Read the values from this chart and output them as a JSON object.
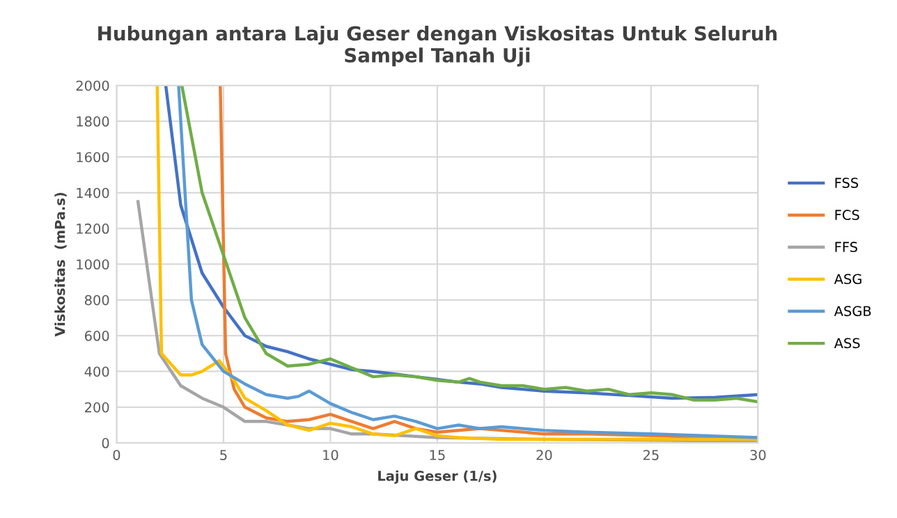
{
  "chart_data": {
    "type": "line",
    "title": "Hubungan antara Laju Geser dengan Viskositas Untuk Seluruh\nSampel Tanah Uji",
    "xlabel": "Laju Geser (1/s)",
    "ylabel": "Viskositas  (mPa.s)",
    "xlim": [
      0,
      30
    ],
    "ylim": [
      0,
      2000
    ],
    "xticks": [
      0,
      5,
      10,
      15,
      20,
      25,
      30
    ],
    "yticks": [
      0,
      200,
      400,
      600,
      800,
      1000,
      1200,
      1400,
      1600,
      1800,
      2000
    ],
    "grid": true,
    "legend": "right",
    "marker": "none",
    "line_style": "solid",
    "series": [
      {
        "name": "FSS",
        "color": "#4472c4",
        "x": [
          2.3,
          3,
          4,
          5,
          6,
          7,
          8,
          9,
          10,
          11,
          12,
          13,
          14,
          15,
          16,
          17,
          18,
          19,
          20,
          22,
          24,
          26,
          28,
          30
        ],
        "values": [
          2000,
          1330,
          950,
          760,
          600,
          540,
          510,
          470,
          440,
          410,
          400,
          385,
          370,
          355,
          340,
          330,
          310,
          300,
          290,
          280,
          265,
          250,
          255,
          270
        ]
      },
      {
        "name": "FCS",
        "color": "#ed7d31",
        "x": [
          4.85,
          5.1,
          5.5,
          6,
          7,
          8,
          9,
          10,
          11,
          12,
          13,
          14,
          15,
          17,
          18,
          20,
          22,
          25,
          28,
          30
        ],
        "values": [
          2000,
          500,
          300,
          200,
          140,
          120,
          130,
          160,
          120,
          80,
          120,
          80,
          60,
          80,
          70,
          50,
          50,
          40,
          30,
          30
        ]
      },
      {
        "name": "FFS",
        "color": "#a5a5a5",
        "x": [
          1,
          2,
          3,
          4,
          5,
          6,
          7,
          8,
          9,
          10,
          11,
          12,
          15,
          20,
          25,
          30
        ],
        "values": [
          1350,
          500,
          320,
          250,
          200,
          120,
          120,
          100,
          80,
          80,
          50,
          50,
          30,
          20,
          15,
          10
        ]
      },
      {
        "name": "ASG",
        "color": "#ffc000",
        "x": [
          1.9,
          2.1,
          3,
          3.5,
          4,
          4.8,
          5.5,
          6,
          7,
          8,
          9,
          10,
          11,
          12,
          13,
          14,
          15,
          16,
          18,
          20,
          25,
          30
        ],
        "values": [
          2000,
          500,
          380,
          380,
          400,
          460,
          350,
          250,
          180,
          100,
          70,
          110,
          90,
          50,
          40,
          80,
          40,
          30,
          20,
          20,
          20,
          20
        ]
      },
      {
        "name": "ASGB",
        "color": "#5b9bd5",
        "x": [
          2.9,
          3.5,
          4,
          5,
          6,
          7,
          8,
          8.5,
          9,
          10,
          11,
          12,
          13,
          14,
          15,
          16,
          17,
          18,
          20,
          22,
          25,
          30
        ],
        "values": [
          2000,
          800,
          550,
          400,
          330,
          270,
          250,
          260,
          290,
          220,
          170,
          130,
          150,
          120,
          80,
          100,
          80,
          90,
          70,
          60,
          50,
          30
        ]
      },
      {
        "name": "ASS",
        "color": "#70ad47",
        "x": [
          3.05,
          4,
          5,
          6,
          7,
          8,
          9,
          10,
          11,
          12,
          13,
          14,
          15,
          16,
          16.5,
          17,
          18,
          19,
          20,
          21,
          22,
          23,
          24,
          25,
          26,
          27,
          28,
          29,
          30
        ],
        "values": [
          2000,
          1400,
          1050,
          700,
          500,
          430,
          440,
          470,
          420,
          370,
          380,
          370,
          350,
          340,
          360,
          340,
          320,
          320,
          300,
          310,
          290,
          300,
          270,
          280,
          270,
          240,
          240,
          250,
          230
        ]
      }
    ]
  }
}
